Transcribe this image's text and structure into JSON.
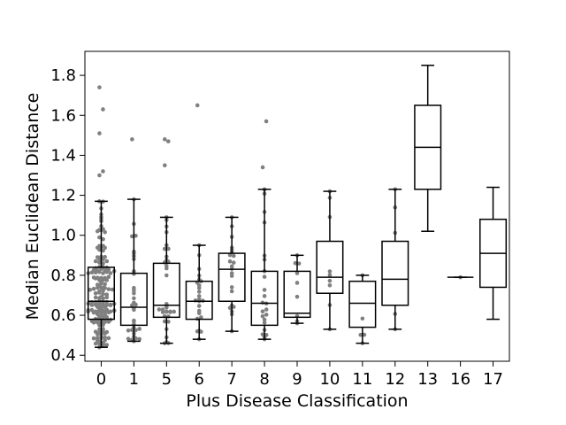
{
  "chart_data": {
    "type": "box",
    "title": "",
    "xlabel": "Plus Disease Classification",
    "ylabel": "Median Euclidean Distance",
    "ylim": [
      0.37,
      1.92
    ],
    "yticks": [
      0.4,
      0.6,
      0.8,
      1.0,
      1.2,
      1.4,
      1.6,
      1.8
    ],
    "ytick_labels": [
      "0.4",
      "0.6",
      "0.8",
      "1.0",
      "1.2",
      "1.4",
      "1.6",
      "1.8"
    ],
    "grid": false,
    "categories": [
      "0",
      "1",
      "5",
      "6",
      "7",
      "8",
      "9",
      "10",
      "11",
      "12",
      "13",
      "16",
      "17"
    ],
    "boxes": [
      {
        "category": "0",
        "whislo": 0.44,
        "q1": 0.58,
        "med": 0.67,
        "q3": 0.84,
        "whishi": 1.17,
        "fliers": [
          1.3,
          1.32,
          1.51,
          1.63,
          1.74
        ],
        "swarm_count": 160
      },
      {
        "category": "1",
        "whislo": 0.47,
        "q1": 0.55,
        "med": 0.64,
        "q3": 0.81,
        "whishi": 1.18,
        "fliers": [
          1.48
        ],
        "swarm_count": 34
      },
      {
        "category": "5",
        "whislo": 0.46,
        "q1": 0.59,
        "med": 0.65,
        "q3": 0.86,
        "whishi": 1.09,
        "fliers": [
          1.35,
          1.47,
          1.48
        ],
        "swarm_count": 34
      },
      {
        "category": "6",
        "whislo": 0.48,
        "q1": 0.58,
        "med": 0.67,
        "q3": 0.77,
        "whishi": 0.95,
        "fliers": [
          1.65
        ],
        "swarm_count": 24
      },
      {
        "category": "7",
        "whislo": 0.52,
        "q1": 0.67,
        "med": 0.83,
        "q3": 0.91,
        "whishi": 1.09,
        "fliers": [],
        "swarm_count": 22
      },
      {
        "category": "8",
        "whislo": 0.48,
        "q1": 0.55,
        "med": 0.66,
        "q3": 0.82,
        "whishi": 1.23,
        "fliers": [
          1.34,
          1.57
        ],
        "swarm_count": 24
      },
      {
        "category": "9",
        "whislo": 0.56,
        "q1": 0.59,
        "med": 0.61,
        "q3": 0.82,
        "whishi": 0.9,
        "fliers": [],
        "swarm_count": 9
      },
      {
        "category": "10",
        "whislo": 0.53,
        "q1": 0.71,
        "med": 0.79,
        "q3": 0.97,
        "whishi": 1.22,
        "fliers": [],
        "swarm_count": 9
      },
      {
        "category": "11",
        "whislo": 0.46,
        "q1": 0.54,
        "med": 0.66,
        "q3": 0.77,
        "whishi": 0.8,
        "fliers": [],
        "swarm_count": 5
      },
      {
        "category": "12",
        "whislo": 0.53,
        "q1": 0.65,
        "med": 0.78,
        "q3": 0.97,
        "whishi": 1.23,
        "fliers": [],
        "swarm_count": 5
      },
      {
        "category": "13",
        "whislo": 1.02,
        "q1": 1.23,
        "med": 1.44,
        "q3": 1.65,
        "whishi": 1.85,
        "fliers": [],
        "swarm_count": 0
      },
      {
        "category": "16",
        "whislo": 0.79,
        "q1": 0.79,
        "med": 0.79,
        "q3": 0.79,
        "whishi": 0.79,
        "fliers": [],
        "swarm_count": 1
      },
      {
        "category": "17",
        "whislo": 0.58,
        "q1": 0.74,
        "med": 0.91,
        "q3": 1.08,
        "whishi": 1.24,
        "fliers": [],
        "swarm_count": 0
      }
    ],
    "colors": {
      "box": "#000000",
      "points": "#808080",
      "background": "#ffffff"
    }
  }
}
